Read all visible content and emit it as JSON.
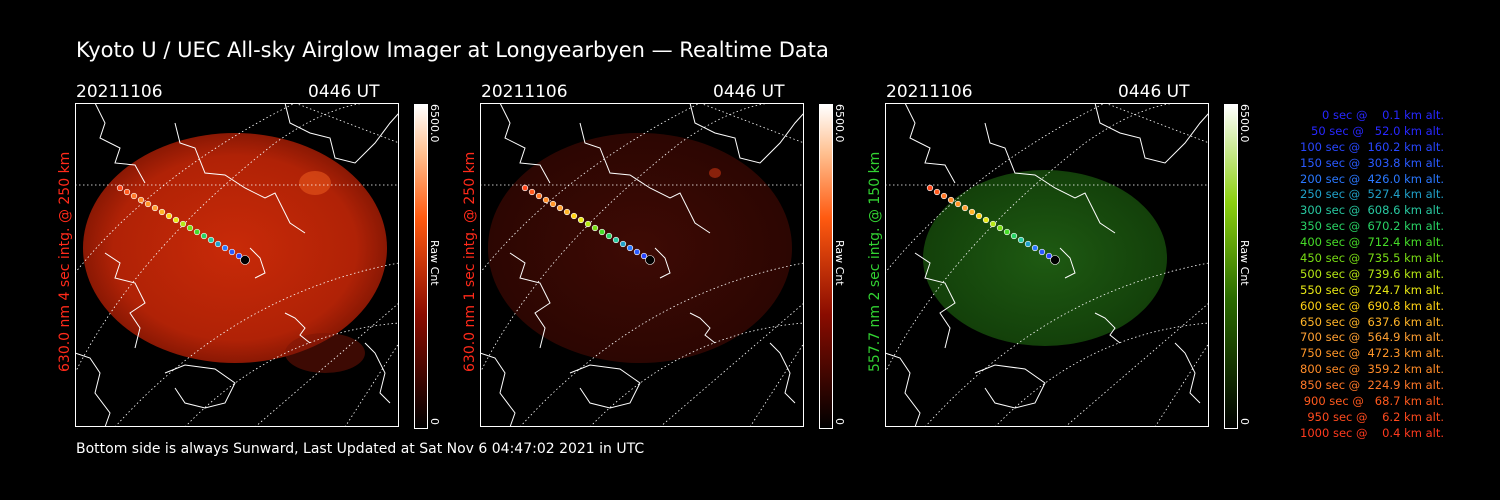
{
  "title": "Kyoto U / UEC All-sky Airglow Imager at Longyearbyen — Realtime Data",
  "footer": "Bottom side is always Sunward, Last Updated at Sat Nov  6 04:47:02 2021 in UTC",
  "colors": {
    "red_label": "#ff2a1a",
    "green_label": "#32d232"
  },
  "panels": [
    {
      "date": "20211106",
      "time": "0446 UT",
      "side_label": "630.0 nm 4 sec intg. @ 250 km",
      "cb_max": "6500.0",
      "cb_unit": "Raw Cnt",
      "cb_min": "0",
      "label_color": "#ff2a1a"
    },
    {
      "date": "20211106",
      "time": "0446 UT",
      "side_label": "630.0 nm 1 sec intg. @ 250 km",
      "cb_max": "6500.0",
      "cb_unit": "Raw Cnt",
      "cb_min": "0",
      "label_color": "#ff2a1a"
    },
    {
      "date": "20211106",
      "time": "0446 UT",
      "side_label": "557.7 nm 2 sec intg. @ 150 km",
      "cb_max": "6500.0",
      "cb_unit": "Raw Cnt",
      "cb_min": "0",
      "label_color": "#32d232"
    }
  ],
  "legend": [
    {
      "text": "0 sec @    0.1 km alt.",
      "color": "#2828ff"
    },
    {
      "text": "50 sec @   52.0 km alt.",
      "color": "#2828ff"
    },
    {
      "text": "100 sec @  160.2 km alt.",
      "color": "#2846ff"
    },
    {
      "text": "150 sec @  303.8 km alt.",
      "color": "#2a5aff"
    },
    {
      "text": "200 sec @  426.0 km alt.",
      "color": "#2a78ff"
    },
    {
      "text": "250 sec @  527.4 km alt.",
      "color": "#20a0c8"
    },
    {
      "text": "300 sec @  608.6 km alt.",
      "color": "#28c8a0"
    },
    {
      "text": "350 sec @  670.2 km alt.",
      "color": "#28d264"
    },
    {
      "text": "400 sec @  712.4 km alt.",
      "color": "#46dc28"
    },
    {
      "text": "450 sec @  735.5 km alt.",
      "color": "#78dc14"
    },
    {
      "text": "500 sec @  739.6 km alt.",
      "color": "#b4e614"
    },
    {
      "text": "550 sec @  724.7 km alt.",
      "color": "#e6e614"
    },
    {
      "text": "600 sec @  690.8 km alt.",
      "color": "#ffd214"
    },
    {
      "text": "650 sec @  637.6 km alt.",
      "color": "#ffb428"
    },
    {
      "text": "700 sec @  564.9 km alt.",
      "color": "#ffa032"
    },
    {
      "text": "750 sec @  472.3 km alt.",
      "color": "#ff9628"
    },
    {
      "text": "800 sec @  359.2 km alt.",
      "color": "#ff8c28"
    },
    {
      "text": "850 sec @  224.9 km alt.",
      "color": "#ff7828"
    },
    {
      "text": "900 sec @   68.7 km alt.",
      "color": "#ff5a1e"
    },
    {
      "text": "950 sec @    6.2 km alt.",
      "color": "#ff4a1e"
    },
    {
      "text": "1000 sec @    0.4 km alt.",
      "color": "#ff3a1e"
    }
  ]
}
